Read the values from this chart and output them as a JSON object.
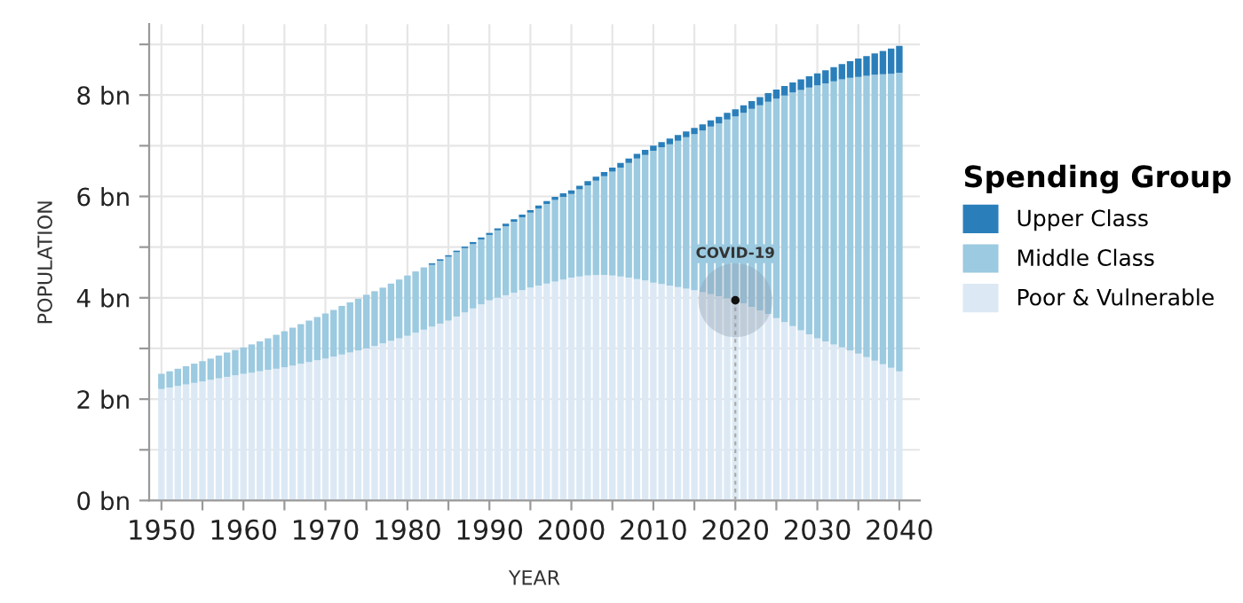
{
  "chart_data": {
    "type": "bar",
    "stacked": true,
    "xlabel": "YEAR",
    "ylabel": "POPULATION",
    "legend_title": "Spending Group",
    "legend": "right",
    "grid": true,
    "x": [
      1950,
      1951,
      1952,
      1953,
      1954,
      1955,
      1956,
      1957,
      1958,
      1959,
      1960,
      1961,
      1962,
      1963,
      1964,
      1965,
      1966,
      1967,
      1968,
      1969,
      1970,
      1971,
      1972,
      1973,
      1974,
      1975,
      1976,
      1977,
      1978,
      1979,
      1980,
      1981,
      1982,
      1983,
      1984,
      1985,
      1986,
      1987,
      1988,
      1989,
      1990,
      1991,
      1992,
      1993,
      1994,
      1995,
      1996,
      1997,
      1998,
      1999,
      2000,
      2001,
      2002,
      2003,
      2004,
      2005,
      2006,
      2007,
      2008,
      2009,
      2010,
      2011,
      2012,
      2013,
      2014,
      2015,
      2016,
      2017,
      2018,
      2019,
      2020,
      2021,
      2022,
      2023,
      2024,
      2025,
      2026,
      2027,
      2028,
      2029,
      2030,
      2031,
      2032,
      2033,
      2034,
      2035,
      2036,
      2037,
      2038,
      2039,
      2040
    ],
    "series": [
      {
        "name": "Poor & Vulnerable",
        "color": "#dce9f5",
        "values": [
          2.2,
          2.23,
          2.26,
          2.29,
          2.32,
          2.35,
          2.38,
          2.41,
          2.44,
          2.47,
          2.5,
          2.52,
          2.55,
          2.58,
          2.6,
          2.63,
          2.66,
          2.7,
          2.73,
          2.77,
          2.8,
          2.84,
          2.88,
          2.92,
          2.96,
          3.0,
          3.05,
          3.1,
          3.15,
          3.2,
          3.25,
          3.31,
          3.37,
          3.43,
          3.49,
          3.55,
          3.63,
          3.71,
          3.79,
          3.87,
          3.95,
          4.0,
          4.05,
          4.1,
          4.15,
          4.2,
          4.24,
          4.28,
          4.32,
          4.36,
          4.4,
          4.42,
          4.44,
          4.45,
          4.45,
          4.44,
          4.42,
          4.4,
          4.37,
          4.34,
          4.3,
          4.27,
          4.24,
          4.21,
          4.18,
          4.15,
          4.11,
          4.07,
          4.03,
          3.99,
          3.95,
          3.89,
          3.82,
          3.75,
          3.68,
          3.6,
          3.52,
          3.44,
          3.36,
          3.28,
          3.2,
          3.14,
          3.08,
          3.02,
          2.96,
          2.9,
          2.83,
          2.76,
          2.69,
          2.62,
          2.55
        ]
      },
      {
        "name": "Middle Class",
        "color": "#9ccae0",
        "values": [
          0.3,
          0.32,
          0.34,
          0.36,
          0.38,
          0.4,
          0.42,
          0.45,
          0.48,
          0.5,
          0.52,
          0.56,
          0.59,
          0.62,
          0.67,
          0.71,
          0.75,
          0.78,
          0.82,
          0.85,
          0.89,
          0.92,
          0.96,
          0.99,
          1.02,
          1.06,
          1.08,
          1.1,
          1.13,
          1.16,
          1.19,
          1.21,
          1.23,
          1.22,
          1.24,
          1.26,
          1.27,
          1.27,
          1.27,
          1.28,
          1.29,
          1.33,
          1.36,
          1.4,
          1.44,
          1.48,
          1.52,
          1.57,
          1.61,
          1.63,
          1.65,
          1.72,
          1.78,
          1.86,
          1.95,
          2.05,
          2.15,
          2.26,
          2.38,
          2.48,
          2.6,
          2.7,
          2.79,
          2.89,
          2.99,
          3.08,
          3.19,
          3.31,
          3.41,
          3.53,
          3.63,
          3.76,
          3.91,
          4.05,
          4.19,
          4.33,
          4.47,
          4.61,
          4.74,
          4.87,
          4.99,
          5.09,
          5.19,
          5.29,
          5.38,
          5.46,
          5.55,
          5.64,
          5.72,
          5.8,
          5.89
        ]
      },
      {
        "name": "Upper Class",
        "color": "#2a7fba",
        "values": [
          0,
          0,
          0,
          0,
          0,
          0,
          0,
          0,
          0,
          0,
          0,
          0,
          0,
          0,
          0,
          0,
          0,
          0,
          0,
          0,
          0,
          0,
          0,
          0,
          0,
          0,
          0,
          0,
          0,
          0,
          0,
          0,
          0,
          0.03,
          0.03,
          0.03,
          0.03,
          0.03,
          0.04,
          0.04,
          0.04,
          0.04,
          0.05,
          0.05,
          0.05,
          0.05,
          0.06,
          0.06,
          0.06,
          0.07,
          0.07,
          0.07,
          0.08,
          0.08,
          0.08,
          0.08,
          0.09,
          0.09,
          0.09,
          0.1,
          0.1,
          0.1,
          0.11,
          0.11,
          0.11,
          0.12,
          0.12,
          0.12,
          0.13,
          0.13,
          0.14,
          0.15,
          0.15,
          0.16,
          0.17,
          0.18,
          0.19,
          0.2,
          0.21,
          0.22,
          0.24,
          0.26,
          0.28,
          0.3,
          0.33,
          0.36,
          0.39,
          0.42,
          0.46,
          0.5,
          0.53
        ]
      }
    ],
    "xlim": [
      1948.5,
      2042.5
    ],
    "xticks": [
      1950,
      {
        "value": 1955,
        "label": null
      },
      1960,
      {
        "value": 1965,
        "label": null
      },
      1970,
      {
        "value": 1975,
        "label": null
      },
      1980,
      {
        "value": 1985,
        "label": null
      },
      1990,
      {
        "value": 1995,
        "label": null
      },
      2000,
      {
        "value": 2005,
        "label": null
      },
      2010,
      {
        "value": 2015,
        "label": null
      },
      2020,
      {
        "value": 2025,
        "label": null
      },
      2030,
      {
        "value": 2035,
        "label": null
      },
      2040
    ],
    "ylim": [
      0,
      9.4
    ],
    "yticks": [
      {
        "value": 0,
        "label": "0 bn"
      },
      {
        "value": 1,
        "label": null
      },
      {
        "value": 2,
        "label": "2 bn"
      },
      {
        "value": 3,
        "label": null
      },
      {
        "value": 4,
        "label": "4 bn"
      },
      {
        "value": 5,
        "label": null
      },
      {
        "value": 6,
        "label": "6 bn"
      },
      {
        "value": 7,
        "label": null
      },
      {
        "value": 8,
        "label": "8 bn"
      },
      {
        "value": 9,
        "label": null
      }
    ],
    "annotations": [
      {
        "text": "COVID-19",
        "x": 2020,
        "y": 3.95
      }
    ],
    "ref_lines": [
      {
        "axis": "x",
        "value": 2020,
        "color": "#aaaaaa",
        "line_style": "dashed"
      }
    ]
  }
}
